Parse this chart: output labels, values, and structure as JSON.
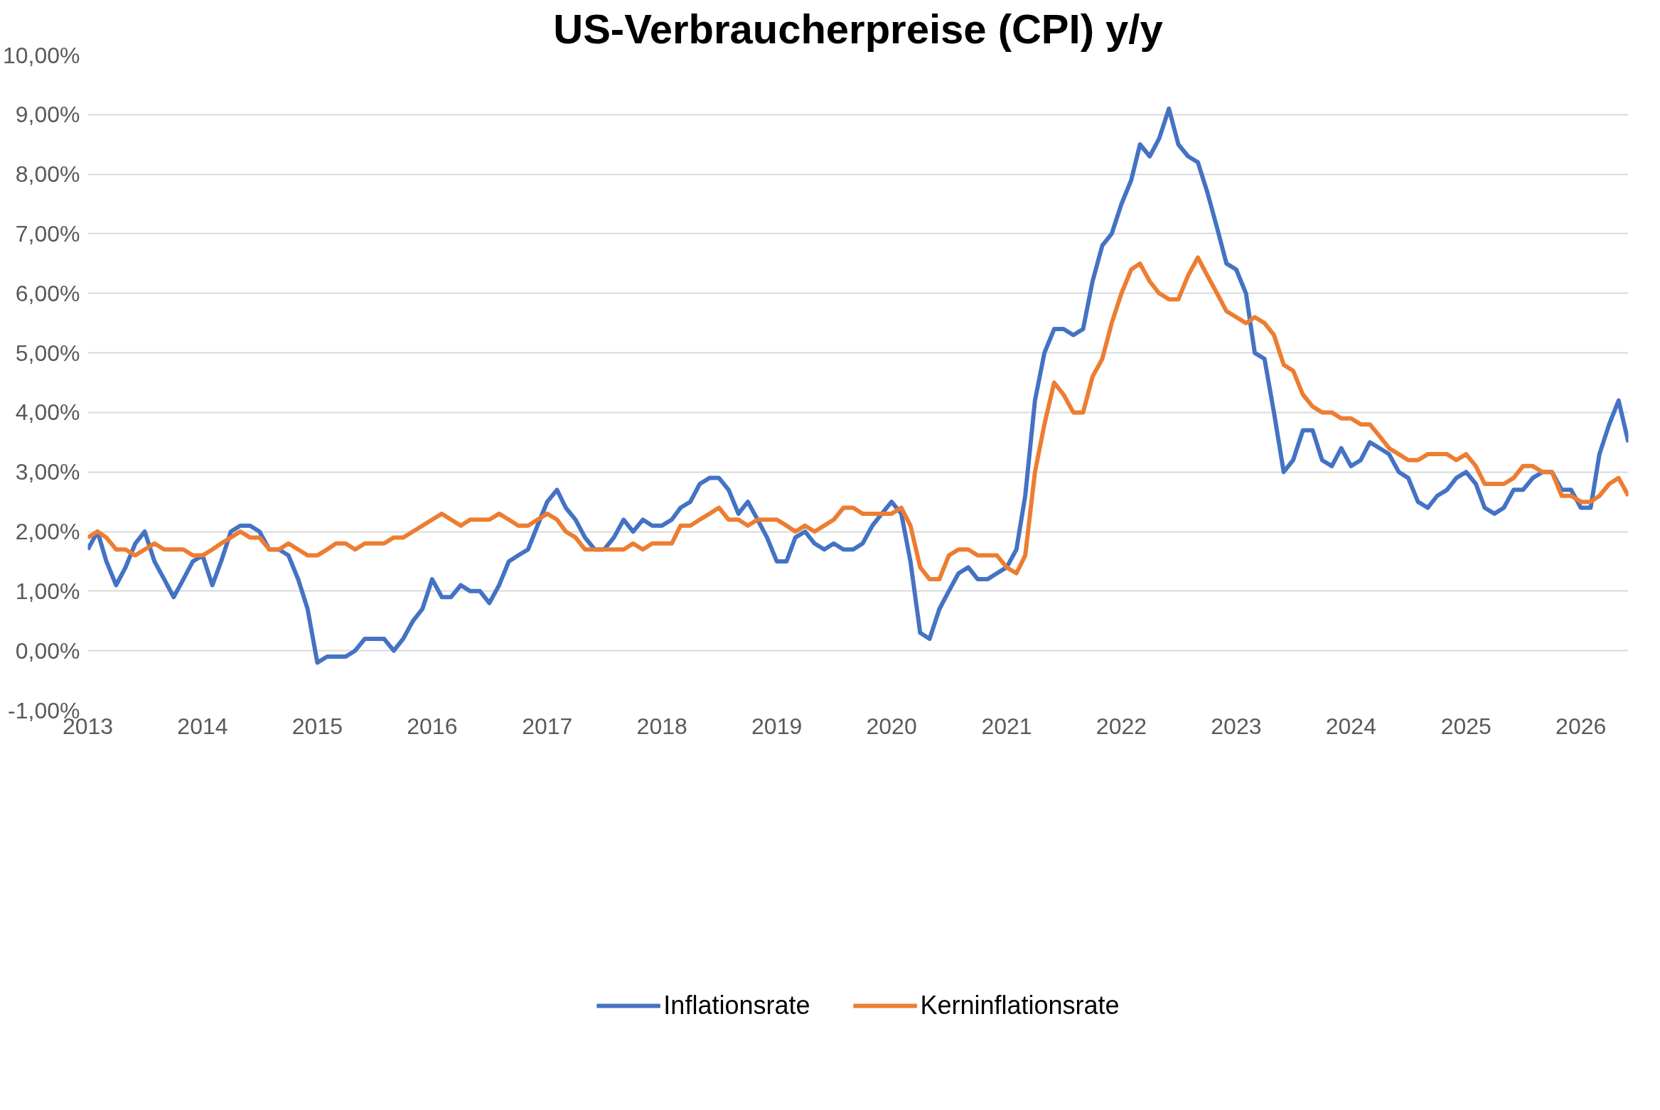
{
  "chart_data": {
    "type": "line",
    "title": "US-Verbraucherpreise (CPI) y/y",
    "x": [
      "2013-01",
      "2013-02",
      "2013-03",
      "2013-04",
      "2013-05",
      "2013-06",
      "2013-07",
      "2013-08",
      "2013-09",
      "2013-10",
      "2013-11",
      "2013-12",
      "2014-01",
      "2014-02",
      "2014-03",
      "2014-04",
      "2014-05",
      "2014-06",
      "2014-07",
      "2014-08",
      "2014-09",
      "2014-10",
      "2014-11",
      "2014-12",
      "2015-01",
      "2015-02",
      "2015-03",
      "2015-04",
      "2015-05",
      "2015-06",
      "2015-07",
      "2015-08",
      "2015-09",
      "2015-10",
      "2015-11",
      "2015-12",
      "2016-01",
      "2016-02",
      "2016-03",
      "2016-04",
      "2016-05",
      "2016-06",
      "2016-07",
      "2016-08",
      "2016-09",
      "2016-10",
      "2016-11",
      "2016-12",
      "2017-01",
      "2017-02",
      "2017-03",
      "2017-04",
      "2017-05",
      "2017-06",
      "2017-07",
      "2017-08",
      "2017-09",
      "2017-10",
      "2017-11",
      "2017-12",
      "2018-01",
      "2018-02",
      "2018-03",
      "2018-04",
      "2018-05",
      "2018-06",
      "2018-07",
      "2018-08",
      "2018-09",
      "2018-10",
      "2018-11",
      "2018-12",
      "2019-01",
      "2019-02",
      "2019-03",
      "2019-04",
      "2019-05",
      "2019-06",
      "2019-07",
      "2019-08",
      "2019-09",
      "2019-10",
      "2019-11",
      "2019-12",
      "2020-01",
      "2020-02",
      "2020-03",
      "2020-04",
      "2020-05",
      "2020-06",
      "2020-07",
      "2020-08",
      "2020-09",
      "2020-10",
      "2020-11",
      "2020-12",
      "2021-01",
      "2021-02",
      "2021-03",
      "2021-04",
      "2021-05",
      "2021-06",
      "2021-07",
      "2021-08",
      "2021-09",
      "2021-10",
      "2021-11",
      "2021-12",
      "2022-01",
      "2022-02",
      "2022-03",
      "2022-04",
      "2022-05",
      "2022-06",
      "2022-07",
      "2022-08",
      "2022-09",
      "2022-10",
      "2022-11",
      "2022-12",
      "2023-01",
      "2023-02",
      "2023-03",
      "2023-04",
      "2023-05",
      "2023-06",
      "2023-07",
      "2023-08",
      "2023-09",
      "2023-10",
      "2023-11",
      "2023-12",
      "2024-01",
      "2024-02",
      "2024-03",
      "2024-04",
      "2024-05",
      "2024-06",
      "2024-07",
      "2024-08",
      "2024-09",
      "2024-10",
      "2024-11",
      "2024-12",
      "2025-01",
      "2025-02",
      "2025-03",
      "2025-04",
      "2025-05",
      "2025-06",
      "2025-07",
      "2025-08",
      "2025-09",
      "2025-10",
      "2025-11",
      "2025-12",
      "2026-01",
      "2026-02",
      "2026-03",
      "2026-04",
      "2026-05",
      "2026-06"
    ],
    "series": [
      {
        "name": "Inflationsrate",
        "color": "#4472c4",
        "values": [
          1.7,
          2.0,
          1.5,
          1.1,
          1.4,
          1.8,
          2.0,
          1.5,
          1.2,
          0.9,
          1.2,
          1.5,
          1.6,
          1.1,
          1.5,
          2.0,
          2.1,
          2.1,
          2.0,
          1.7,
          1.7,
          1.6,
          1.2,
          0.7,
          -0.2,
          -0.1,
          -0.1,
          -0.1,
          0.0,
          0.2,
          0.2,
          0.2,
          0.0,
          0.2,
          0.5,
          0.7,
          1.2,
          0.9,
          0.9,
          1.1,
          1.0,
          1.0,
          0.8,
          1.1,
          1.5,
          1.6,
          1.7,
          2.1,
          2.5,
          2.7,
          2.4,
          2.2,
          1.9,
          1.7,
          1.7,
          1.9,
          2.2,
          2.0,
          2.2,
          2.1,
          2.1,
          2.2,
          2.4,
          2.5,
          2.8,
          2.9,
          2.9,
          2.7,
          2.3,
          2.5,
          2.2,
          1.9,
          1.5,
          1.5,
          1.9,
          2.0,
          1.8,
          1.7,
          1.8,
          1.7,
          1.7,
          1.8,
          2.1,
          2.3,
          2.5,
          2.3,
          1.5,
          0.3,
          0.2,
          0.7,
          1.0,
          1.3,
          1.4,
          1.2,
          1.2,
          1.3,
          1.4,
          1.7,
          2.6,
          4.2,
          5.0,
          5.4,
          5.4,
          5.3,
          5.4,
          6.2,
          6.8,
          7.0,
          7.5,
          7.9,
          8.5,
          8.3,
          8.6,
          9.1,
          8.5,
          8.3,
          8.2,
          7.7,
          7.1,
          6.5,
          6.4,
          6.0,
          5.0,
          4.9,
          4.0,
          3.0,
          3.2,
          3.7,
          3.7,
          3.2,
          3.1,
          3.4,
          3.1,
          3.2,
          3.5,
          3.4,
          3.3,
          3.0,
          2.9,
          2.5,
          2.4,
          2.6,
          2.7,
          2.9,
          3.0,
          2.8,
          2.4,
          2.3,
          2.4,
          2.7,
          2.7,
          2.9,
          3.0,
          3.0,
          2.7,
          2.7,
          2.4,
          2.4,
          3.3,
          3.8,
          4.2,
          3.5
        ]
      },
      {
        "name": "Kerninflationsrate",
        "color": "#ed7d31",
        "values": [
          1.9,
          2.0,
          1.9,
          1.7,
          1.7,
          1.6,
          1.7,
          1.8,
          1.7,
          1.7,
          1.7,
          1.6,
          1.6,
          1.7,
          1.8,
          1.9,
          2.0,
          1.9,
          1.9,
          1.7,
          1.7,
          1.8,
          1.7,
          1.6,
          1.6,
          1.7,
          1.8,
          1.8,
          1.7,
          1.8,
          1.8,
          1.8,
          1.9,
          1.9,
          2.0,
          2.1,
          2.2,
          2.3,
          2.2,
          2.1,
          2.2,
          2.2,
          2.2,
          2.3,
          2.2,
          2.1,
          2.1,
          2.2,
          2.3,
          2.2,
          2.0,
          1.9,
          1.7,
          1.7,
          1.7,
          1.7,
          1.7,
          1.8,
          1.7,
          1.8,
          1.8,
          1.8,
          2.1,
          2.1,
          2.2,
          2.3,
          2.4,
          2.2,
          2.2,
          2.1,
          2.2,
          2.2,
          2.2,
          2.1,
          2.0,
          2.1,
          2.0,
          2.1,
          2.2,
          2.4,
          2.4,
          2.3,
          2.3,
          2.3,
          2.3,
          2.4,
          2.1,
          1.4,
          1.2,
          1.2,
          1.6,
          1.7,
          1.7,
          1.6,
          1.6,
          1.6,
          1.4,
          1.3,
          1.6,
          3.0,
          3.8,
          4.5,
          4.3,
          4.0,
          4.0,
          4.6,
          4.9,
          5.5,
          6.0,
          6.4,
          6.5,
          6.2,
          6.0,
          5.9,
          5.9,
          6.3,
          6.6,
          6.3,
          6.0,
          5.7,
          5.6,
          5.5,
          5.6,
          5.5,
          5.3,
          4.8,
          4.7,
          4.3,
          4.1,
          4.0,
          4.0,
          3.9,
          3.9,
          3.8,
          3.8,
          3.6,
          3.4,
          3.3,
          3.2,
          3.2,
          3.3,
          3.3,
          3.3,
          3.2,
          3.3,
          3.1,
          2.8,
          2.8,
          2.8,
          2.9,
          3.1,
          3.1,
          3.0,
          3.0,
          2.6,
          2.6,
          2.5,
          2.5,
          2.6,
          2.8,
          2.9,
          2.6
        ]
      }
    ],
    "xlim": [
      "2013-01",
      "2026-06"
    ],
    "xticks": [
      "2013",
      "2014",
      "2015",
      "2016",
      "2017",
      "2018",
      "2019",
      "2020",
      "2021",
      "2022",
      "2023",
      "2024",
      "2025",
      "2026"
    ],
    "ylim": [
      -1,
      10
    ],
    "yticks": [
      {
        "value": -1,
        "label": "-1,00%"
      },
      {
        "value": 0,
        "label": "0,00%"
      },
      {
        "value": 1,
        "label": "1,00%"
      },
      {
        "value": 2,
        "label": "2,00%"
      },
      {
        "value": 3,
        "label": "3,00%"
      },
      {
        "value": 4,
        "label": "4,00%"
      },
      {
        "value": 5,
        "label": "5,00%"
      },
      {
        "value": 6,
        "label": "6,00%"
      },
      {
        "value": 7,
        "label": "7,00%"
      },
      {
        "value": 8,
        "label": "8,00%"
      },
      {
        "value": 9,
        "label": "9,00%"
      },
      {
        "value": 10,
        "label": "10,00%"
      }
    ],
    "grid": "y",
    "legend": "bottom",
    "line_style": "solid"
  }
}
